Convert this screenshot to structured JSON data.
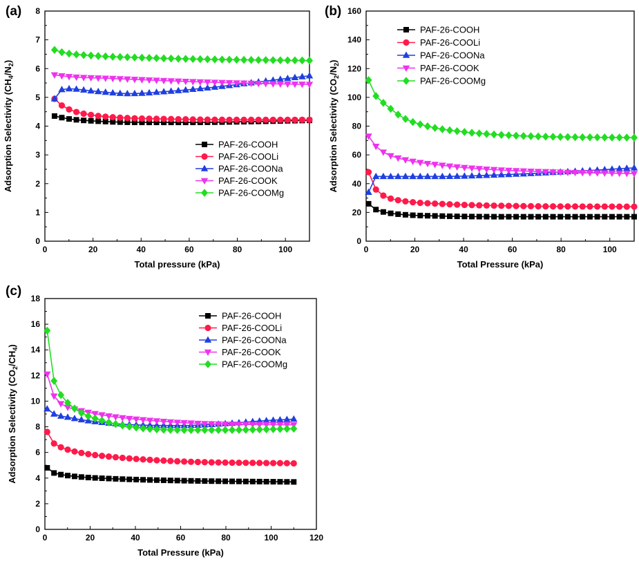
{
  "colors": {
    "PAF-26-COOH": "#000000",
    "PAF-26-COOLi": "#ff1a4a",
    "PAF-26-COONa": "#1f3fe0",
    "PAF-26-COOK": "#ee33ee",
    "PAF-26-COOMg": "#22dd22"
  },
  "markers": {
    "PAF-26-COOH": "square",
    "PAF-26-COOLi": "circle",
    "PAF-26-COONa": "triangle-up",
    "PAF-26-COOK": "triangle-down",
    "PAF-26-COOMg": "diamond"
  },
  "chart_data": [
    {
      "type": "line",
      "panel": "(a)",
      "xlabel": "Total pressure (kPa)",
      "ylabel_main": "Adsorption Selectivity (CH",
      "ylabel_sub1": "4",
      "ylabel_mid": "/N",
      "ylabel_sub2": "2",
      "ylabel_end": ")",
      "xlim": [
        0,
        110
      ],
      "ylim": [
        0,
        8
      ],
      "xticks": [
        0,
        20,
        40,
        60,
        80,
        100
      ],
      "yticks": [
        0,
        1,
        2,
        3,
        4,
        5,
        6,
        7,
        8
      ],
      "x_start": 4,
      "x_end": 110,
      "n_points": 36,
      "legend_position": "lower-right",
      "series": [
        {
          "name": "PAF-26-COOH",
          "anchors": [
            [
              4,
              4.35
            ],
            [
              10,
              4.25
            ],
            [
              20,
              4.18
            ],
            [
              40,
              4.13
            ],
            [
              60,
              4.13
            ],
            [
              80,
              4.15
            ],
            [
              110,
              4.2
            ]
          ]
        },
        {
          "name": "PAF-26-COOLi",
          "anchors": [
            [
              4,
              4.95
            ],
            [
              7,
              4.72
            ],
            [
              12,
              4.52
            ],
            [
              20,
              4.38
            ],
            [
              30,
              4.3
            ],
            [
              50,
              4.25
            ],
            [
              80,
              4.22
            ],
            [
              110,
              4.22
            ]
          ]
        },
        {
          "name": "PAF-26-COONa",
          "anchors": [
            [
              4,
              4.95
            ],
            [
              7,
              5.27
            ],
            [
              10,
              5.3
            ],
            [
              20,
              5.22
            ],
            [
              35,
              5.13
            ],
            [
              50,
              5.2
            ],
            [
              70,
              5.35
            ],
            [
              90,
              5.55
            ],
            [
              110,
              5.75
            ]
          ]
        },
        {
          "name": "PAF-26-COOK",
          "anchors": [
            [
              4,
              5.78
            ],
            [
              10,
              5.72
            ],
            [
              30,
              5.65
            ],
            [
              60,
              5.55
            ],
            [
              90,
              5.48
            ],
            [
              110,
              5.45
            ]
          ]
        },
        {
          "name": "PAF-26-COOMg",
          "anchors": [
            [
              4,
              6.65
            ],
            [
              8,
              6.55
            ],
            [
              20,
              6.45
            ],
            [
              40,
              6.38
            ],
            [
              70,
              6.32
            ],
            [
              110,
              6.28
            ]
          ]
        }
      ]
    },
    {
      "type": "line",
      "panel": "(b)",
      "xlabel": "Total Pressure (kPa)",
      "ylabel_main": "Adsorption Selectivity (CO",
      "ylabel_sub1": "2",
      "ylabel_mid": "/N",
      "ylabel_sub2": "2",
      "ylabel_end": ")",
      "xlim": [
        0,
        110
      ],
      "ylim": [
        0,
        160
      ],
      "xticks": [
        0,
        20,
        40,
        60,
        80,
        100
      ],
      "yticks": [
        0,
        20,
        40,
        60,
        80,
        100,
        120,
        140,
        160
      ],
      "x_start": 1,
      "x_end": 110,
      "n_points": 37,
      "legend_position": "top-left",
      "series": [
        {
          "name": "PAF-26-COOH",
          "anchors": [
            [
              1,
              26
            ],
            [
              4,
              22
            ],
            [
              8,
              20
            ],
            [
              15,
              18.5
            ],
            [
              30,
              17.5
            ],
            [
              60,
              17
            ],
            [
              110,
              17
            ]
          ]
        },
        {
          "name": "PAF-26-COOLi",
          "anchors": [
            [
              1,
              48
            ],
            [
              4,
              36
            ],
            [
              8,
              31
            ],
            [
              15,
              28
            ],
            [
              30,
              26
            ],
            [
              60,
              24.5
            ],
            [
              110,
              24
            ]
          ]
        },
        {
          "name": "PAF-26-COONa",
          "anchors": [
            [
              1,
              34
            ],
            [
              4,
              45
            ],
            [
              10,
              45
            ],
            [
              30,
              45
            ],
            [
              60,
              46.5
            ],
            [
              90,
              49
            ],
            [
              110,
              51
            ]
          ]
        },
        {
          "name": "PAF-26-COOK",
          "anchors": [
            [
              1,
              73
            ],
            [
              4,
              66
            ],
            [
              8,
              61
            ],
            [
              15,
              57
            ],
            [
              30,
              53
            ],
            [
              50,
              50
            ],
            [
              80,
              48
            ],
            [
              110,
              47
            ]
          ]
        },
        {
          "name": "PAF-26-COOMg",
          "anchors": [
            [
              1,
              112
            ],
            [
              4,
              101
            ],
            [
              8,
              95
            ],
            [
              15,
              86
            ],
            [
              25,
              80
            ],
            [
              40,
              76
            ],
            [
              60,
              73.5
            ],
            [
              80,
              72.5
            ],
            [
              110,
              72
            ]
          ]
        }
      ]
    },
    {
      "type": "line",
      "panel": "(c)",
      "xlabel": "Total Pressure (kPa)",
      "ylabel_main": "Adsorption Selectivity (CO",
      "ylabel_sub1": "2",
      "ylabel_mid": "/CH",
      "ylabel_sub2": "4",
      "ylabel_end": ")",
      "xlim": [
        0,
        120
      ],
      "ylim": [
        0,
        18
      ],
      "xticks": [
        0,
        20,
        40,
        60,
        80,
        100,
        120
      ],
      "yticks": [
        0,
        2,
        4,
        6,
        8,
        10,
        12,
        14,
        16,
        18
      ],
      "x_start": 1,
      "x_end": 110,
      "n_points": 37,
      "legend_position": "top-right",
      "series": [
        {
          "name": "PAF-26-COOH",
          "anchors": [
            [
              1,
              4.8
            ],
            [
              4,
              4.4
            ],
            [
              8,
              4.25
            ],
            [
              15,
              4.1
            ],
            [
              30,
              3.95
            ],
            [
              60,
              3.8
            ],
            [
              110,
              3.7
            ]
          ]
        },
        {
          "name": "PAF-26-COOLi",
          "anchors": [
            [
              1,
              7.6
            ],
            [
              4,
              6.7
            ],
            [
              8,
              6.35
            ],
            [
              15,
              6.0
            ],
            [
              30,
              5.65
            ],
            [
              60,
              5.3
            ],
            [
              110,
              5.15
            ]
          ]
        },
        {
          "name": "PAF-26-COONa",
          "anchors": [
            [
              1,
              9.4
            ],
            [
              4,
              9.0
            ],
            [
              10,
              8.75
            ],
            [
              20,
              8.45
            ],
            [
              40,
              8.15
            ],
            [
              60,
              8.1
            ],
            [
              80,
              8.25
            ],
            [
              95,
              8.45
            ],
            [
              110,
              8.6
            ]
          ]
        },
        {
          "name": "PAF-26-COOK",
          "anchors": [
            [
              1,
              12.1
            ],
            [
              4,
              10.4
            ],
            [
              8,
              9.7
            ],
            [
              15,
              9.3
            ],
            [
              30,
              8.8
            ],
            [
              50,
              8.45
            ],
            [
              70,
              8.25
            ],
            [
              110,
              8.15
            ]
          ]
        },
        {
          "name": "PAF-26-COOMg",
          "anchors": [
            [
              1,
              15.5
            ],
            [
              4,
              11.6
            ],
            [
              8,
              10.3
            ],
            [
              15,
              9.2
            ],
            [
              25,
              8.5
            ],
            [
              40,
              7.95
            ],
            [
              60,
              7.75
            ],
            [
              80,
              7.75
            ],
            [
              110,
              7.85
            ]
          ]
        }
      ]
    }
  ]
}
